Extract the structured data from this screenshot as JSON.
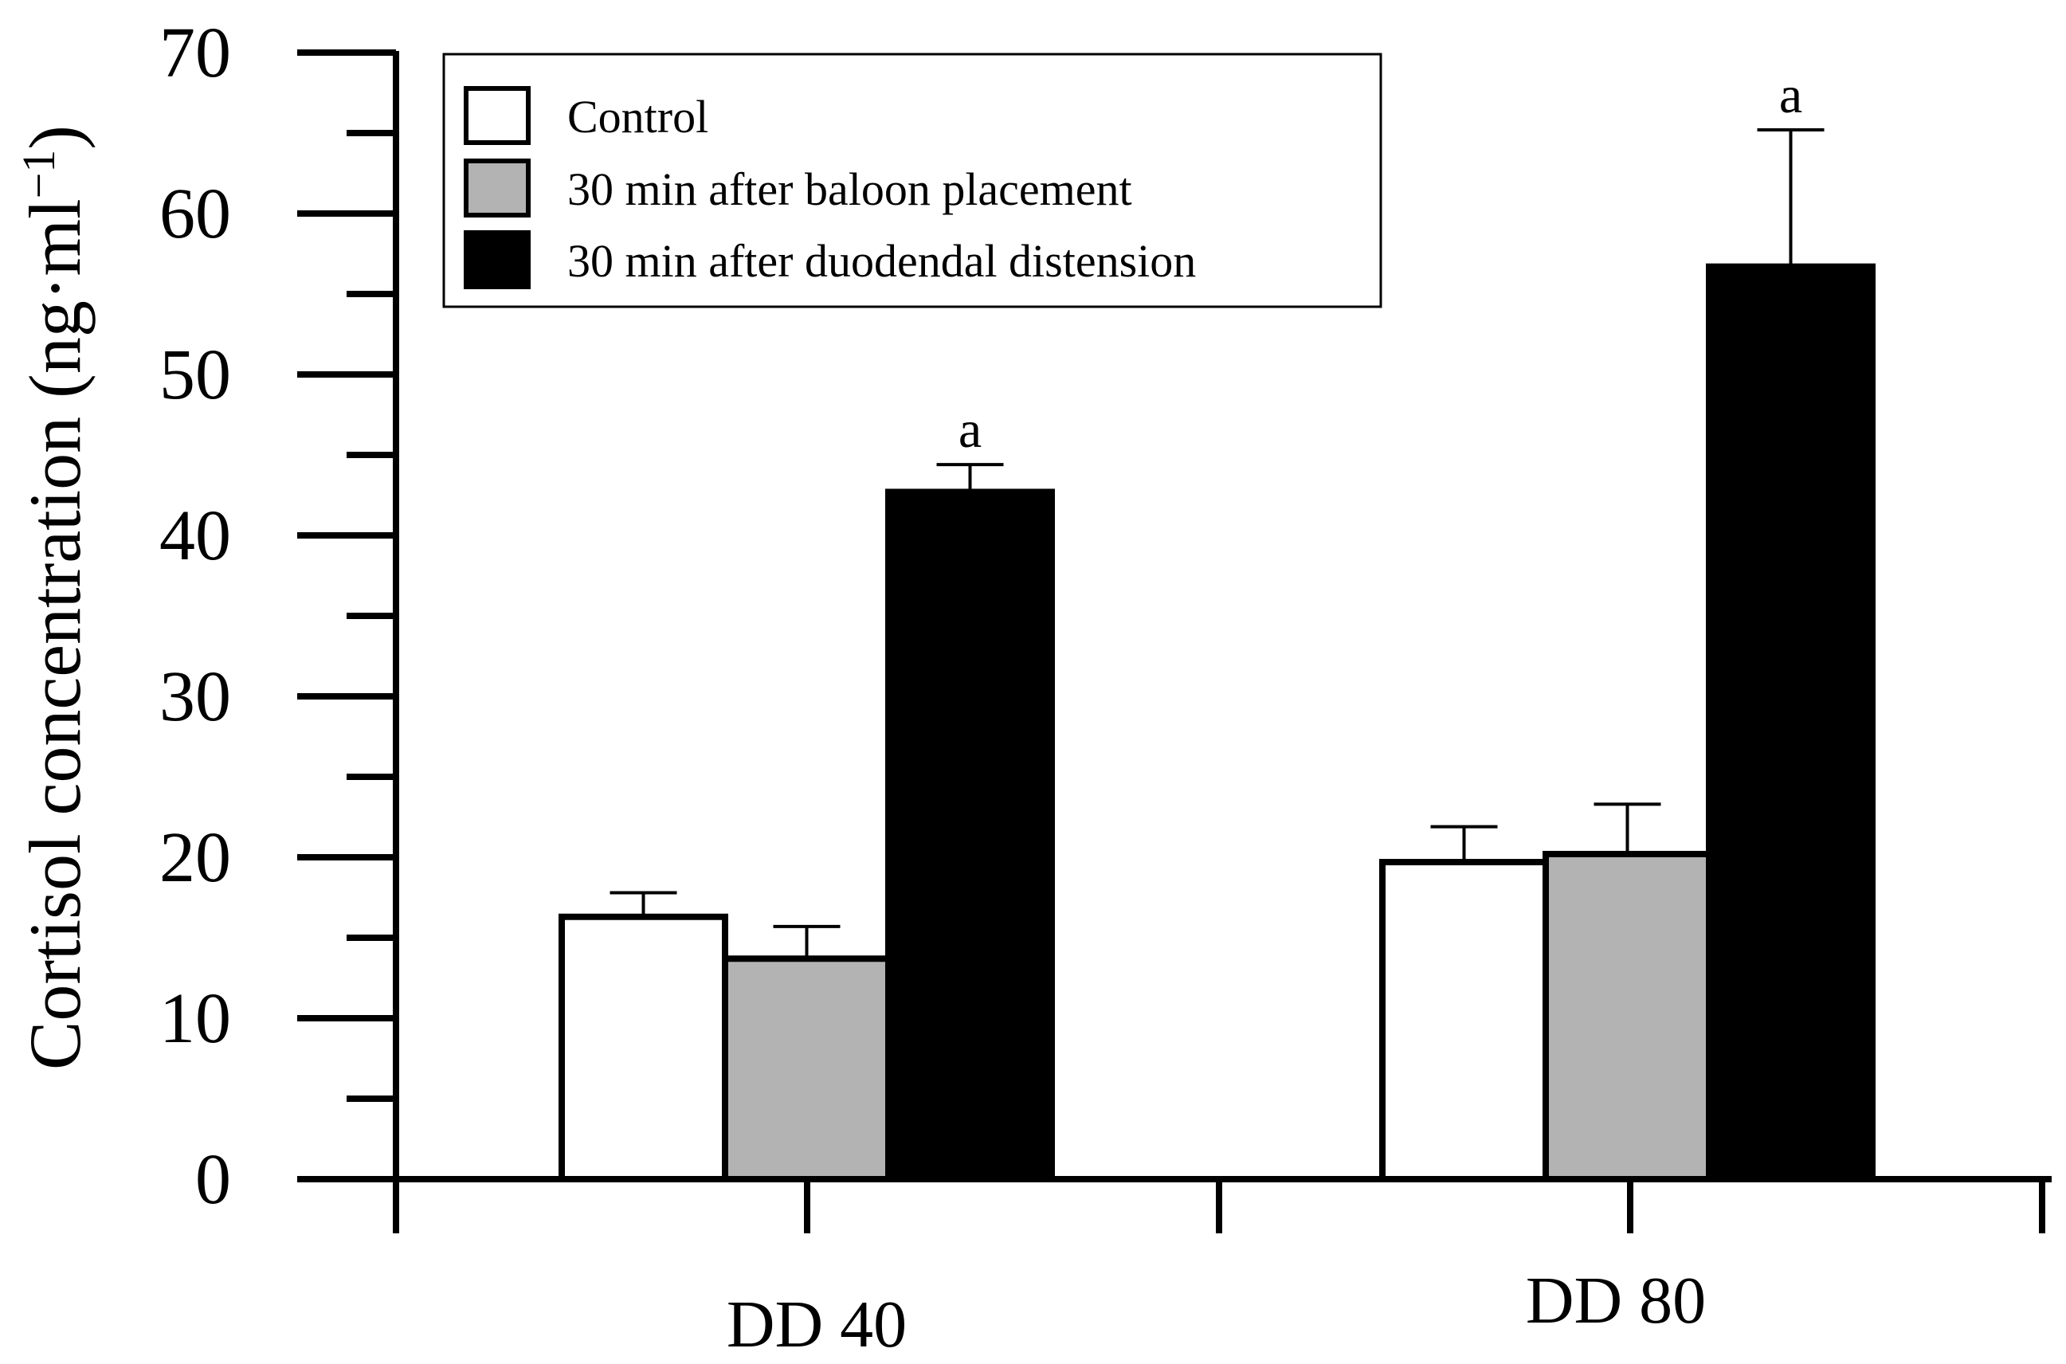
{
  "chart_data": {
    "type": "bar",
    "title": "",
    "xlabel": "",
    "ylabel": "Cortisol concentration (ng·ml",
    "ylabel_sup": "−1",
    "ylabel_close": ")",
    "ylim": [
      0,
      70
    ],
    "yticks": [
      0,
      10,
      20,
      30,
      40,
      50,
      60,
      70
    ],
    "yticks_minor": [
      5,
      15,
      25,
      35,
      45,
      55,
      65
    ],
    "categories": [
      "DD 40",
      "DD 80"
    ],
    "series": [
      {
        "name": "Control",
        "color": "#ffffff",
        "values": [
          16.3,
          19.7
        ],
        "errors": [
          1.5,
          2.2
        ],
        "labels": [
          "",
          ""
        ]
      },
      {
        "name": "30 min after baloon placement",
        "color": "#b3b3b3",
        "values": [
          13.7,
          20.2
        ],
        "errors": [
          2.0,
          3.1
        ],
        "labels": [
          "",
          ""
        ]
      },
      {
        "name": "30 min after duodendal distension",
        "color": "#000000",
        "values": [
          42.7,
          56.7
        ],
        "errors": [
          1.7,
          8.5
        ],
        "labels": [
          "a",
          "a"
        ]
      }
    ],
    "legend_position": "top-left",
    "grid": false
  }
}
